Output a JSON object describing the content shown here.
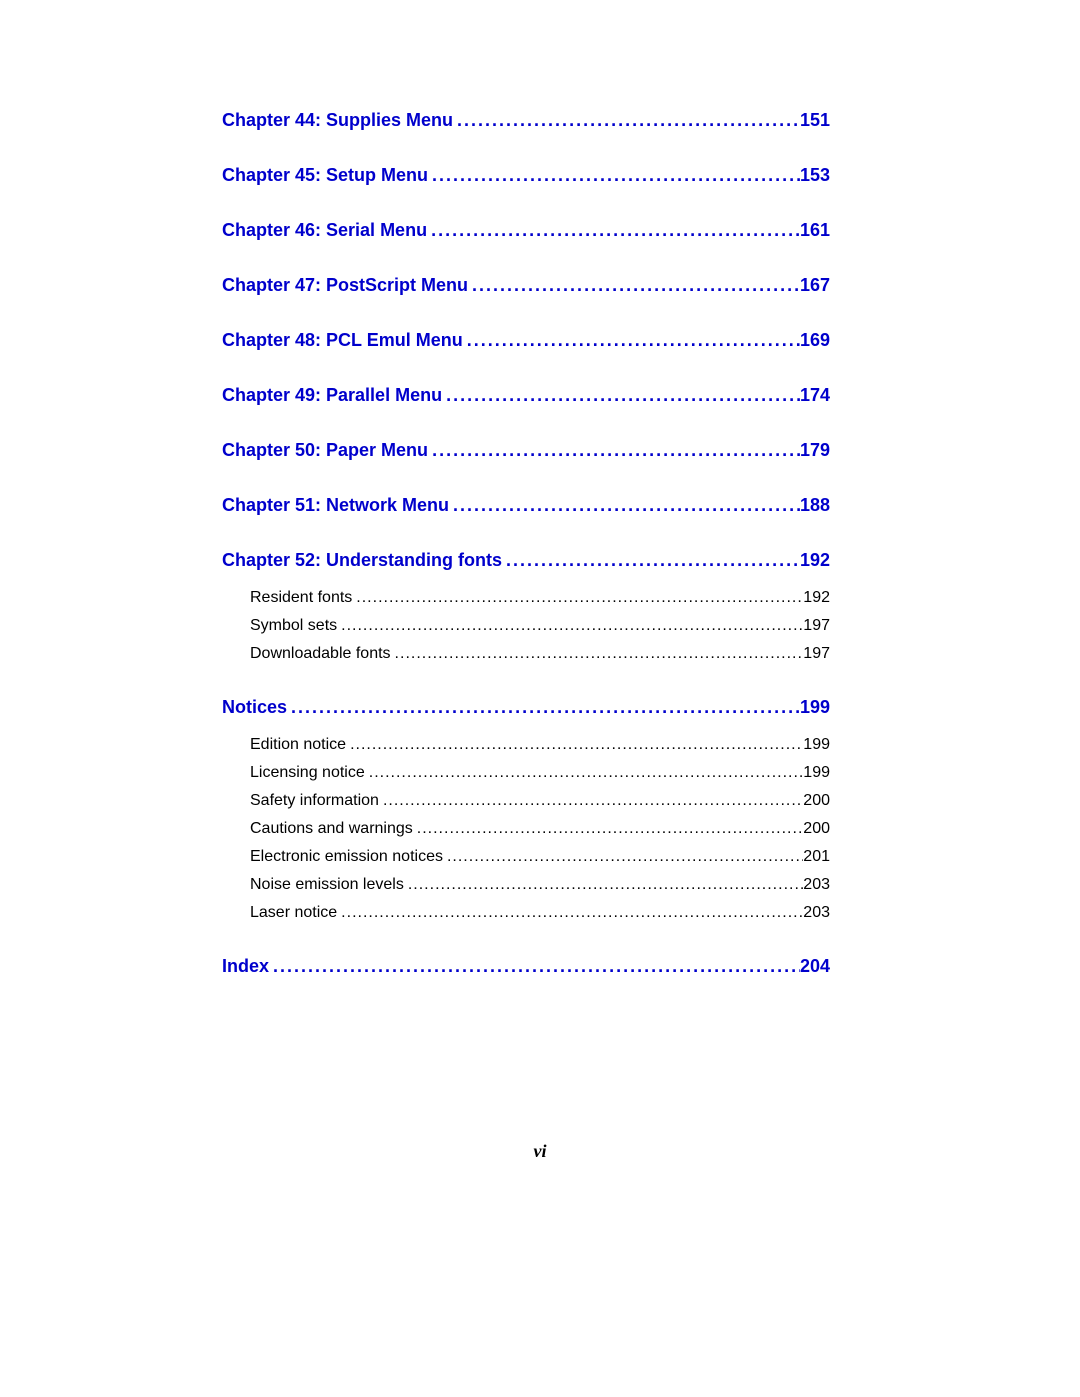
{
  "style": {
    "chapter_color": "#0000cc",
    "sub_color": "#000000",
    "chapter_font_size": 18,
    "sub_font_size": 16,
    "chapter_font_weight": "bold",
    "sub_font_weight": "normal",
    "background_color": "#ffffff"
  },
  "dots": {
    "chapter": " ..................................................................................................................",
    "sub": " .............................................................................................................................................................."
  },
  "page_number_label": "vi",
  "entries": [
    {
      "type": "chapter",
      "label": "Chapter 44:  Supplies Menu",
      "page": "151"
    },
    {
      "type": "chapter",
      "label": "Chapter 45:  Setup Menu",
      "page": "153"
    },
    {
      "type": "chapter",
      "label": "Chapter 46:  Serial Menu",
      "page": "161"
    },
    {
      "type": "chapter",
      "label": "Chapter 47:  PostScript Menu",
      "page": "167"
    },
    {
      "type": "chapter",
      "label": "Chapter 48:  PCL Emul Menu",
      "page": "169"
    },
    {
      "type": "chapter",
      "label": "Chapter 49:  Parallel Menu",
      "page": "174"
    },
    {
      "type": "chapter",
      "label": "Chapter 50:  Paper Menu",
      "page": "179"
    },
    {
      "type": "chapter",
      "label": "Chapter 51:  Network Menu",
      "page": "188"
    },
    {
      "type": "chapter",
      "label": "Chapter 52:  Understanding fonts",
      "page": "192",
      "subs": [
        {
          "label": "Resident fonts",
          "page": "192"
        },
        {
          "label": "Symbol sets",
          "page": "197"
        },
        {
          "label": "Downloadable fonts",
          "page": "197"
        }
      ]
    },
    {
      "type": "chapter",
      "label": "Notices",
      "page": "199",
      "subs": [
        {
          "label": "Edition notice",
          "page": "199"
        },
        {
          "label": "Licensing notice",
          "page": "199"
        },
        {
          "label": "Safety information",
          "page": "200"
        },
        {
          "label": "Cautions and warnings",
          "page": "200"
        },
        {
          "label": "Electronic emission notices",
          "page": "201"
        },
        {
          "label": "Noise emission levels",
          "page": "203"
        },
        {
          "label": "Laser notice",
          "page": "203"
        }
      ]
    },
    {
      "type": "chapter",
      "label": "Index",
      "page": "204"
    }
  ]
}
